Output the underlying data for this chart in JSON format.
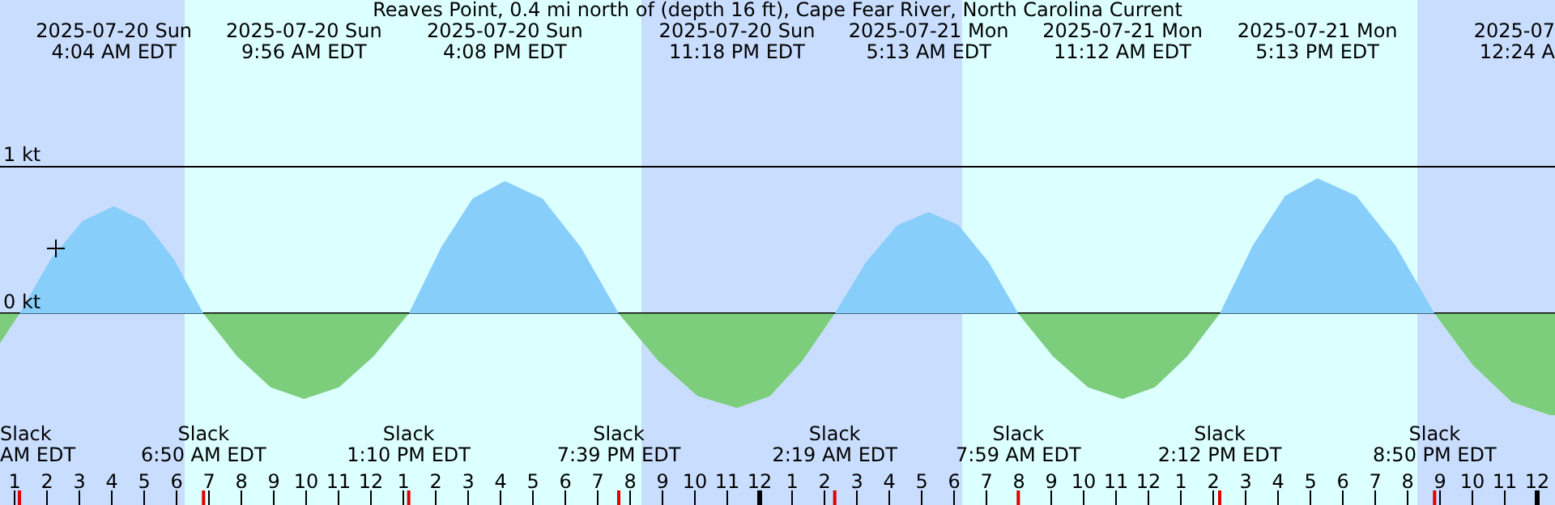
{
  "chart_data": {
    "type": "area",
    "title": "Reaves Point, 0.4 mi north of (depth 16 ft), Cape Fear River, North Carolina Current",
    "x": [
      "2025-07-20T00:33",
      "2025-07-20T01:09",
      "2025-07-20T02:07",
      "2025-07-20T03:06",
      "2025-07-20T04:04",
      "2025-07-20T05:00",
      "2025-07-20T05:55",
      "2025-07-20T06:50",
      "2025-07-20T07:52",
      "2025-07-20T08:54",
      "2025-07-20T09:56",
      "2025-07-20T11:01",
      "2025-07-20T12:05",
      "2025-07-20T13:10",
      "2025-07-20T14:10",
      "2025-07-20T15:08",
      "2025-07-20T16:08",
      "2025-07-20T17:18",
      "2025-07-20T18:29",
      "2025-07-20T19:39",
      "2025-07-20T20:52",
      "2025-07-20T22:05",
      "2025-07-20T23:18",
      "2025-07-21T00:19",
      "2025-07-21T01:19",
      "2025-07-21T02:19",
      "2025-07-21T03:17",
      "2025-07-21T04:15",
      "2025-07-21T05:13",
      "2025-07-21T06:08",
      "2025-07-21T07:04",
      "2025-07-21T07:59",
      "2025-07-21T09:03",
      "2025-07-21T10:08",
      "2025-07-21T11:12",
      "2025-07-21T12:12",
      "2025-07-21T13:12",
      "2025-07-21T14:12",
      "2025-07-21T15:13",
      "2025-07-21T16:13",
      "2025-07-21T17:13",
      "2025-07-21T18:25",
      "2025-07-21T19:38",
      "2025-07-21T20:50",
      "2025-07-21T22:01",
      "2025-07-21T23:13",
      "2025-07-22T00:24",
      "2025-07-22T00:33"
    ],
    "series": [
      {
        "color": "#87cefa",
        "values": [
          null,
          0,
          0.37,
          0.63,
          0.73,
          0.63,
          0.37,
          0,
          null,
          null,
          null,
          null,
          null,
          0,
          0.45,
          0.78,
          0.9,
          0.78,
          0.45,
          0,
          null,
          null,
          null,
          null,
          null,
          0,
          0.35,
          0.6,
          0.69,
          0.6,
          0.35,
          0,
          null,
          null,
          null,
          null,
          null,
          0,
          0.46,
          0.8,
          0.92,
          0.8,
          0.46,
          0,
          null,
          null,
          null,
          null
        ]
      },
      {
        "color": "#7ccd7c",
        "values": [
          -0.2,
          0,
          null,
          null,
          null,
          null,
          null,
          0,
          -0.29,
          -0.5,
          -0.58,
          -0.5,
          -0.29,
          0,
          null,
          null,
          null,
          null,
          null,
          0,
          -0.32,
          -0.56,
          -0.64,
          -0.56,
          -0.32,
          0,
          null,
          null,
          null,
          null,
          null,
          0,
          -0.29,
          -0.5,
          -0.58,
          -0.5,
          -0.29,
          0,
          null,
          null,
          null,
          null,
          null,
          0,
          -0.35,
          -0.6,
          -0.69,
          -0.69
        ]
      }
    ],
    "xlim": [
      "2025-07-20T00:33",
      "2025-07-22T00:33"
    ],
    "xticks": [
      {
        "value": "2025-07-20T01:00",
        "label": "1"
      },
      {
        "value": "2025-07-20T02:00",
        "label": "2"
      },
      {
        "value": "2025-07-20T03:00",
        "label": "3"
      },
      {
        "value": "2025-07-20T04:00",
        "label": "4"
      },
      {
        "value": "2025-07-20T05:00",
        "label": "5"
      },
      {
        "value": "2025-07-20T06:00",
        "label": "6"
      },
      {
        "value": "2025-07-20T07:00",
        "label": "7"
      },
      {
        "value": "2025-07-20T08:00",
        "label": "8"
      },
      {
        "value": "2025-07-20T09:00",
        "label": "9"
      },
      {
        "value": "2025-07-20T10:00",
        "label": "10"
      },
      {
        "value": "2025-07-20T11:00",
        "label": "11"
      },
      {
        "value": "2025-07-20T12:00",
        "label": "12"
      },
      {
        "value": "2025-07-20T13:00",
        "label": "1"
      },
      {
        "value": "2025-07-20T14:00",
        "label": "2"
      },
      {
        "value": "2025-07-20T15:00",
        "label": "3"
      },
      {
        "value": "2025-07-20T16:00",
        "label": "4"
      },
      {
        "value": "2025-07-20T17:00",
        "label": "5"
      },
      {
        "value": "2025-07-20T18:00",
        "label": "6"
      },
      {
        "value": "2025-07-20T19:00",
        "label": "7"
      },
      {
        "value": "2025-07-20T20:00",
        "label": "8"
      },
      {
        "value": "2025-07-20T21:00",
        "label": "9"
      },
      {
        "value": "2025-07-20T22:00",
        "label": "10"
      },
      {
        "value": "2025-07-20T23:00",
        "label": "11"
      },
      {
        "value": "2025-07-21T00:00",
        "label": "12"
      },
      {
        "value": "2025-07-21T01:00",
        "label": "1"
      },
      {
        "value": "2025-07-21T02:00",
        "label": "2"
      },
      {
        "value": "2025-07-21T03:00",
        "label": "3"
      },
      {
        "value": "2025-07-21T04:00",
        "label": "4"
      },
      {
        "value": "2025-07-21T05:00",
        "label": "5"
      },
      {
        "value": "2025-07-21T06:00",
        "label": "6"
      },
      {
        "value": "2025-07-21T07:00",
        "label": "7"
      },
      {
        "value": "2025-07-21T08:00",
        "label": "8"
      },
      {
        "value": "2025-07-21T09:00",
        "label": "9"
      },
      {
        "value": "2025-07-21T10:00",
        "label": "10"
      },
      {
        "value": "2025-07-21T11:00",
        "label": "11"
      },
      {
        "value": "2025-07-21T12:00",
        "label": "12"
      },
      {
        "value": "2025-07-21T13:00",
        "label": "1"
      },
      {
        "value": "2025-07-21T14:00",
        "label": "2"
      },
      {
        "value": "2025-07-21T15:00",
        "label": "3"
      },
      {
        "value": "2025-07-21T16:00",
        "label": "4"
      },
      {
        "value": "2025-07-21T17:00",
        "label": "5"
      },
      {
        "value": "2025-07-21T18:00",
        "label": "6"
      },
      {
        "value": "2025-07-21T19:00",
        "label": "7"
      },
      {
        "value": "2025-07-21T20:00",
        "label": "8"
      },
      {
        "value": "2025-07-21T21:00",
        "label": "9"
      },
      {
        "value": "2025-07-21T22:00",
        "label": "10"
      },
      {
        "value": "2025-07-21T23:00",
        "label": "11"
      },
      {
        "value": "2025-07-22T00:00",
        "label": "12"
      }
    ],
    "ylim": [
      -1.3,
      2.13
    ],
    "yticks": [
      {
        "value": 0,
        "label": "0 kt"
      },
      {
        "value": 1,
        "label": "1 kt"
      }
    ],
    "grid": "y",
    "legend": false,
    "bands": [
      {
        "axis": "x",
        "from": "2025-07-20T00:33",
        "to": "2025-07-20T06:15",
        "color": "#c9deff"
      },
      {
        "axis": "x",
        "from": "2025-07-20T20:21",
        "to": "2025-07-21T06:15",
        "color": "#c9deff"
      },
      {
        "axis": "x",
        "from": "2025-07-21T20:18",
        "to": "2025-07-22T00:33",
        "color": "#c9deff"
      }
    ],
    "annotations": [
      "2025-07-20 Sun\n4:04 AM EDT",
      "2025-07-20 Sun\n9:56 AM EDT",
      "2025-07-20 Sun\n4:08 PM EDT",
      "2025-07-20 Sun\n11:18 PM EDT",
      "2025-07-21 Mon\n5:13 AM EDT",
      "2025-07-21 Mon\n11:12 AM EDT",
      "2025-07-21 Mon\n5:13 PM EDT",
      "2025-07\n12:24 A",
      "Slack\nAM EDT",
      "Slack\n6:50 AM EDT",
      "Slack\n1:10 PM EDT",
      "Slack\n7:39 PM EDT",
      "Slack\n2:19 AM EDT",
      "Slack\n7:59 AM EDT",
      "Slack\n2:12 PM EDT",
      "Slack\n8:50 PM EDT"
    ]
  }
}
